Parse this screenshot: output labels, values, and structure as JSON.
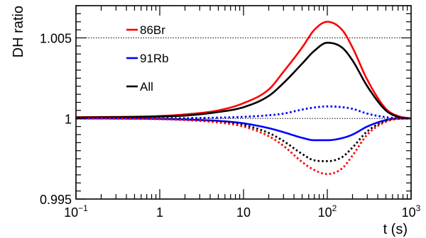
{
  "chart_data": {
    "type": "line",
    "xlabel": "t (s)",
    "ylabel": "DH ratio",
    "x_scale": "log",
    "xlim": [
      0.1,
      1000
    ],
    "ylim": [
      0.995,
      1.007
    ],
    "x_ticks": [
      {
        "value": 0.1,
        "base": "10",
        "exp": "−1"
      },
      {
        "value": 1,
        "base": "1",
        "exp": ""
      },
      {
        "value": 10,
        "base": "10",
        "exp": ""
      },
      {
        "value": 100,
        "base": "10",
        "exp": "2"
      },
      {
        "value": 1000,
        "base": "10",
        "exp": "3"
      }
    ],
    "y_ticks": [
      {
        "value": 0.995,
        "label": "0.995"
      },
      {
        "value": 1,
        "label": "1"
      },
      {
        "value": 1.005,
        "label": "1.005"
      }
    ],
    "reference_lines": [
      1.005,
      1.0
    ],
    "x": [
      0.1,
      0.2,
      0.5,
      1,
      2,
      5,
      10,
      20,
      30,
      50,
      70,
      100,
      150,
      200,
      300,
      500,
      700,
      1000
    ],
    "series": [
      {
        "name": "86Br",
        "color": "#ff0000",
        "dash": "solid",
        "values": [
          1.00008,
          1.00009,
          1.00011,
          1.00015,
          1.00025,
          1.0005,
          1.00095,
          1.0018,
          1.0029,
          1.0044,
          1.0055,
          1.006,
          1.0055,
          1.0044,
          1.0024,
          1.0006,
          1.00015,
          1.0
        ]
      },
      {
        "name": "All",
        "color": "#000000",
        "dash": "solid",
        "values": [
          1.00006,
          1.00007,
          1.00009,
          1.00012,
          1.00018,
          1.0004,
          1.0007,
          1.0014,
          1.0022,
          1.0034,
          1.0042,
          1.0047,
          1.0044,
          1.0036,
          1.002,
          1.0005,
          1.0001,
          1.0
        ]
      },
      {
        "name": "91Rb",
        "color": "#0000ff",
        "dash": "solid",
        "values": [
          1.0,
          1.0,
          0.99999,
          0.99997,
          0.99993,
          0.99985,
          0.9997,
          0.9994,
          0.99915,
          0.9988,
          0.99865,
          0.99865,
          0.99878,
          0.999,
          0.9995,
          0.9999,
          1.0,
          1.0
        ]
      },
      {
        "name": "",
        "color": "#0000ff",
        "dash": "dotted",
        "values": [
          1.0,
          1.0,
          1.0,
          1.00001,
          1.00002,
          1.00005,
          1.0001,
          1.0002,
          1.0003,
          1.00055,
          1.00068,
          1.00075,
          1.0007,
          1.0006,
          1.0003,
          1.00008,
          1.00002,
          1.0
        ]
      },
      {
        "name": "",
        "color": "#000000",
        "dash": "dotted",
        "values": [
          1.0,
          1.0,
          0.99999,
          0.99997,
          0.99992,
          0.9998,
          0.9996,
          0.9991,
          0.9986,
          0.9978,
          0.9974,
          0.99735,
          0.9976,
          0.9982,
          0.9992,
          0.99985,
          0.99998,
          1.0
        ]
      },
      {
        "name": "",
        "color": "#ff0000",
        "dash": "dotted",
        "values": [
          1.0,
          1.0,
          0.99999,
          0.99996,
          0.9999,
          0.99975,
          0.9995,
          0.9989,
          0.9983,
          0.9973,
          0.9968,
          0.99655,
          0.9969,
          0.9977,
          0.999,
          0.9998,
          0.99998,
          1.0
        ]
      }
    ],
    "legend": {
      "placement": "top-left",
      "entries": [
        {
          "label": "86Br",
          "color": "#ff0000"
        },
        {
          "label": "91Rb",
          "color": "#0000ff"
        },
        {
          "label": "All",
          "color": "#000000"
        }
      ]
    }
  }
}
